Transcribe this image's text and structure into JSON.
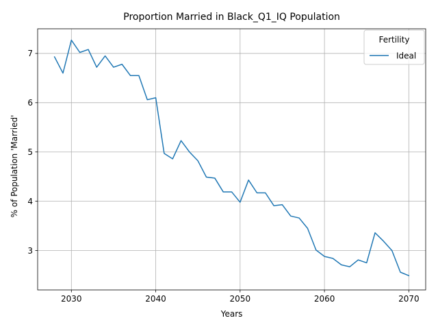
{
  "chart_data": {
    "type": "line",
    "title": "Proportion Married in Black_Q1_IQ Population",
    "xlabel": "Years",
    "ylabel": "% of Population 'Married'",
    "xlim": [
      2026,
      2072
    ],
    "ylim": [
      2.2,
      7.5
    ],
    "xticks": [
      2030,
      2040,
      2050,
      2060,
      2070
    ],
    "yticks": [
      3,
      4,
      5,
      6,
      7
    ],
    "grid": true,
    "legend": {
      "title": "Fertility",
      "placement": "top-right"
    },
    "series": [
      {
        "name": "Ideal",
        "color": "#1f77b4",
        "x": [
          2028,
          2029,
          2030,
          2031,
          2032,
          2033,
          2034,
          2035,
          2036,
          2037,
          2038,
          2039,
          2040,
          2041,
          2042,
          2043,
          2044,
          2045,
          2046,
          2047,
          2048,
          2049,
          2050,
          2051,
          2052,
          2053,
          2054,
          2055,
          2056,
          2057,
          2058,
          2059,
          2060,
          2061,
          2062,
          2063,
          2064,
          2065,
          2066,
          2067,
          2068,
          2069,
          2070
        ],
        "y": [
          6.93,
          6.6,
          7.27,
          7.02,
          7.08,
          6.72,
          6.95,
          6.72,
          6.78,
          6.55,
          6.55,
          6.06,
          6.1,
          4.97,
          4.86,
          5.23,
          5.0,
          4.82,
          4.49,
          4.47,
          4.19,
          4.19,
          3.98,
          4.43,
          4.17,
          4.17,
          3.91,
          3.93,
          3.7,
          3.66,
          3.45,
          3.01,
          2.88,
          2.84,
          2.71,
          2.67,
          2.81,
          2.75,
          3.36,
          3.19,
          3.0,
          2.56,
          2.49
        ]
      }
    ]
  }
}
